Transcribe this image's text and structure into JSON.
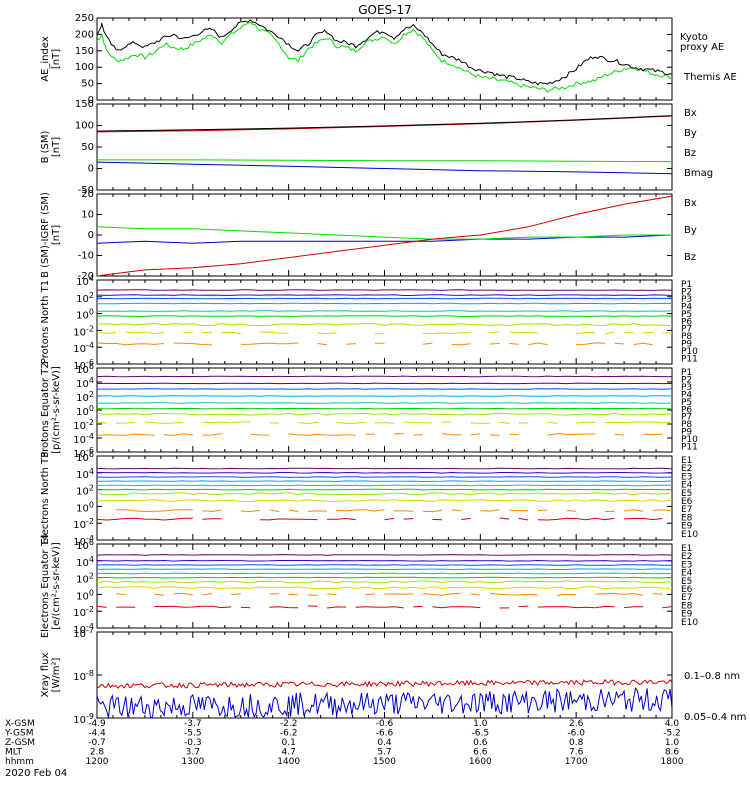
{
  "title": "GOES-17",
  "date_label": "2020 Feb 04",
  "colors": {
    "black": "#000000",
    "green": "#00dd00",
    "blue": "#0000cc",
    "red": "#cc0000",
    "p_colors": [
      "#000000",
      "#6a006a",
      "#3a00c8",
      "#0050ff",
      "#00a8e0",
      "#00c8b4",
      "#00d000",
      "#a8e000",
      "#e0d000",
      "#ff8800",
      "#e00000"
    ],
    "e_colors": [
      "#000000",
      "#6a006a",
      "#3a00c8",
      "#0050ff",
      "#00a8e0",
      "#00c8b4",
      "#00d000",
      "#a8e000",
      "#e0d000",
      "#ff8800",
      "#e00000"
    ]
  },
  "footer": {
    "row_labels": [
      "X-GSM",
      "Y-GSM",
      "Z-GSM",
      "MLT",
      "hhmm"
    ],
    "x_gsm": [
      "-4.9",
      "-3.7",
      "-2.2",
      "-0.6",
      "1.0",
      "2.6",
      "4.0"
    ],
    "y_gsm": [
      "-4.4",
      "-5.5",
      "-6.2",
      "-6.6",
      "-6.5",
      "-6.0",
      "-5.2"
    ],
    "z_gsm": [
      "-0.7",
      "-0.3",
      "0.1",
      "0.4",
      "0.6",
      "0.8",
      "1.0"
    ],
    "mlt": [
      "2.8",
      "3.7",
      "4.7",
      "5.7",
      "6.6",
      "7.6",
      "8.6"
    ],
    "hhmm": [
      "1200",
      "1300",
      "1400",
      "1500",
      "1600",
      "1700",
      "1800"
    ]
  },
  "chart_data": [
    {
      "type": "line",
      "ylabel": "AE_index [nT]",
      "ylim": [
        0,
        250
      ],
      "yticks": [
        "0",
        "50",
        "100",
        "150",
        "200",
        "250"
      ],
      "x_range": [
        "1200",
        "1800"
      ],
      "series": [
        {
          "name": "Kyoto proxy AE",
          "color": "#00dd00",
          "x_hours": [
            12.0,
            12.05,
            12.1,
            12.2,
            12.3,
            12.4,
            12.5,
            12.6,
            12.7,
            12.8,
            12.9,
            13.0,
            13.1,
            13.2,
            13.3,
            13.4,
            13.5,
            13.6,
            13.7,
            13.8,
            13.9,
            14.0,
            14.1,
            14.2,
            14.3,
            14.4,
            14.5,
            14.6,
            14.7,
            14.8,
            14.9,
            15.0,
            15.1,
            15.2,
            15.3,
            15.4,
            15.5,
            15.6,
            15.7,
            15.8,
            15.9,
            16.0,
            16.1,
            16.2,
            16.3,
            16.4,
            16.5,
            16.6,
            16.7,
            16.8,
            16.9,
            17.0,
            17.1,
            17.2,
            17.3,
            17.4,
            17.5,
            17.6,
            17.7,
            17.8,
            17.9,
            18.0
          ],
          "values": [
            180,
            200,
            150,
            120,
            125,
            140,
            130,
            145,
            170,
            160,
            155,
            170,
            185,
            200,
            175,
            200,
            220,
            240,
            215,
            200,
            170,
            130,
            120,
            155,
            175,
            190,
            165,
            160,
            150,
            175,
            185,
            195,
            170,
            200,
            215,
            190,
            150,
            120,
            110,
            95,
            80,
            70,
            65,
            60,
            55,
            45,
            40,
            35,
            30,
            35,
            40,
            50,
            55,
            60,
            75,
            85,
            95,
            100,
            90,
            80,
            75,
            70
          ]
        },
        {
          "name": "Themis AE",
          "color": "#000000",
          "x_hours": [
            12.0,
            12.05,
            12.1,
            12.2,
            12.3,
            12.4,
            12.5,
            12.6,
            12.7,
            12.8,
            12.9,
            13.0,
            13.1,
            13.2,
            13.3,
            13.4,
            13.5,
            13.6,
            13.7,
            13.8,
            13.9,
            14.0,
            14.1,
            14.2,
            14.3,
            14.4,
            14.5,
            14.6,
            14.7,
            14.8,
            14.9,
            15.0,
            15.1,
            15.2,
            15.3,
            15.4,
            15.5,
            15.6,
            15.7,
            15.8,
            15.9,
            16.0,
            16.1,
            16.2,
            16.3,
            16.4,
            16.5,
            16.6,
            16.7,
            16.8,
            16.9,
            17.0,
            17.1,
            17.2,
            17.3,
            17.4,
            17.5,
            17.6,
            17.7,
            17.8,
            17.9,
            18.0
          ],
          "values": [
            200,
            230,
            190,
            150,
            165,
            175,
            160,
            175,
            190,
            200,
            185,
            195,
            210,
            215,
            190,
            215,
            235,
            245,
            230,
            210,
            195,
            170,
            150,
            170,
            200,
            210,
            180,
            175,
            165,
            185,
            205,
            210,
            190,
            215,
            225,
            205,
            170,
            140,
            130,
            120,
            100,
            90,
            85,
            75,
            70,
            65,
            55,
            50,
            50,
            60,
            75,
            95,
            120,
            135,
            125,
            120,
            110,
            100,
            95,
            90,
            85,
            80
          ]
        }
      ],
      "legend": [
        "Kyoto proxy AE",
        "Themis AE"
      ]
    },
    {
      "type": "line",
      "ylabel": "B (SM) [nT]",
      "ylim": [
        -50,
        150
      ],
      "yticks": [
        "-50",
        "0",
        "50",
        "100",
        "150"
      ],
      "series": [
        {
          "name": "Bx",
          "color": "#0000cc",
          "x_hours": [
            12.0,
            13.0,
            14.0,
            15.0,
            16.0,
            17.0,
            18.0
          ],
          "values": [
            15,
            10,
            5,
            0,
            -5,
            -8,
            -12
          ]
        },
        {
          "name": "By",
          "color": "#00dd00",
          "x_hours": [
            12.0,
            13.0,
            14.0,
            15.0,
            16.0,
            17.0,
            18.0
          ],
          "values": [
            20,
            20,
            19,
            18,
            18,
            17,
            16
          ]
        },
        {
          "name": "Bz",
          "color": "#cc0000",
          "x_hours": [
            12.0,
            13.0,
            14.0,
            15.0,
            16.0,
            17.0,
            18.0
          ],
          "values": [
            85,
            88,
            92,
            98,
            104,
            112,
            122
          ]
        },
        {
          "name": "Bmag",
          "color": "#000000",
          "x_hours": [
            12.0,
            13.0,
            14.0,
            15.0,
            16.0,
            17.0,
            18.0
          ],
          "values": [
            87,
            90,
            94,
            99,
            105,
            113,
            123
          ]
        }
      ],
      "legend": [
        "Bx",
        "By",
        "Bz",
        "Bmag"
      ]
    },
    {
      "type": "line",
      "ylabel": "B (SM)-IGRF (SM) [nT]",
      "ylim": [
        -20,
        20
      ],
      "yticks": [
        "-20",
        "-10",
        "0",
        "10",
        "20"
      ],
      "series": [
        {
          "name": "Bx",
          "color": "#0000cc",
          "x_hours": [
            12.0,
            12.5,
            13.0,
            13.5,
            14.0,
            14.5,
            15.0,
            15.5,
            16.0,
            16.5,
            17.0,
            17.5,
            18.0
          ],
          "values": [
            -4,
            -3,
            -4,
            -3,
            -3,
            -3,
            -3,
            -3,
            -2,
            -2,
            -1,
            -1,
            0
          ]
        },
        {
          "name": "By",
          "color": "#00dd00",
          "x_hours": [
            12.0,
            12.5,
            13.0,
            13.5,
            14.0,
            14.5,
            15.0,
            15.5,
            16.0,
            16.5,
            17.0,
            17.5,
            18.0
          ],
          "values": [
            4,
            3,
            3,
            2,
            1,
            0,
            -1,
            -2,
            -2,
            -1,
            -1,
            0,
            0
          ]
        },
        {
          "name": "Bz",
          "color": "#cc0000",
          "x_hours": [
            12.0,
            12.5,
            13.0,
            13.5,
            14.0,
            14.5,
            15.0,
            15.5,
            16.0,
            16.5,
            17.0,
            17.5,
            18.0
          ],
          "values": [
            -20,
            -17,
            -16,
            -14,
            -11,
            -8,
            -5,
            -2,
            0,
            4,
            10,
            15,
            19
          ]
        }
      ],
      "legend": [
        "Bx",
        "By",
        "Bz"
      ]
    },
    {
      "type": "line",
      "yscale": "log",
      "ylabel": "Protons North T1",
      "ylim_exp": [
        -6,
        4
      ],
      "yticks": [
        "10^4",
        "10^2",
        "10^0",
        "10^-2",
        "10^-4",
        "10^-6"
      ],
      "levels_exp": [
        2.8,
        2.2,
        1.8,
        1.2,
        0.3,
        -0.3,
        -1.3,
        -2.3,
        -3.6
      ],
      "legend": [
        "P1",
        "P2",
        "P3",
        "P4",
        "P5",
        "P6",
        "P7",
        "P8",
        "P9",
        "P10",
        "P11"
      ]
    },
    {
      "type": "line",
      "yscale": "log",
      "ylabel": "Protons Equator T2 [p/(cm²-s-sr-keV)]",
      "ylim_exp": [
        -6,
        6
      ],
      "yticks": [
        "10^6",
        "10^4",
        "10^2",
        "10^0",
        "10^-2",
        "10^-4",
        "10^-6"
      ],
      "levels_exp": [
        4.8,
        3.8,
        3.0,
        2.0,
        1.0,
        0.2,
        -0.6,
        -1.8,
        -3.5
      ],
      "legend": [
        "P1",
        "P2",
        "P3",
        "P4",
        "P5",
        "P6",
        "P7",
        "P8",
        "P9",
        "P10",
        "P11"
      ]
    },
    {
      "type": "line",
      "yscale": "log",
      "ylabel": "Electrons North T3",
      "ylim_exp": [
        -4,
        6
      ],
      "yticks": [
        "10^6",
        "10^4",
        "10^2",
        "10^0",
        "10^-2",
        "10^-4"
      ],
      "levels_exp": [
        4.5,
        4.0,
        3.5,
        3.0,
        2.5,
        2.0,
        1.5,
        0.7,
        -0.5,
        -1.5
      ],
      "legend": [
        "E1",
        "E2",
        "E3",
        "E4",
        "E5",
        "E6",
        "E7",
        "E8",
        "E9",
        "E10"
      ]
    },
    {
      "type": "line",
      "yscale": "log",
      "ylabel": "Electrons Equator T4 [e/(cm²-s-sr-keV)]",
      "ylim_exp": [
        -4,
        6
      ],
      "yticks": [
        "10^6",
        "10^4",
        "10^2",
        "10^0",
        "10^-2",
        "10^-4"
      ],
      "levels_exp": [
        4.7,
        4.0,
        3.5,
        3.0,
        2.5,
        2.0,
        1.5,
        0.8,
        0.0,
        -1.5
      ],
      "legend": [
        "E1",
        "E2",
        "E3",
        "E4",
        "E5",
        "E6",
        "E7",
        "E8",
        "E9",
        "E10"
      ]
    },
    {
      "type": "line",
      "yscale": "log",
      "ylabel": "Xray flux [W/m²]",
      "ylim_exp": [
        -9,
        -7
      ],
      "yticks": [
        "10^-7",
        "10^-8",
        "10^-9"
      ],
      "series": [
        {
          "name": "0.1-0.8 nm",
          "color": "#cc0000",
          "mean_exp": -8.25
        },
        {
          "name": "0.05-0.4 nm",
          "color": "#0000cc",
          "mean_exp": -8.75
        }
      ],
      "legend": [
        "0.1–0.8 nm",
        "0.05–0.4 nm"
      ]
    }
  ]
}
